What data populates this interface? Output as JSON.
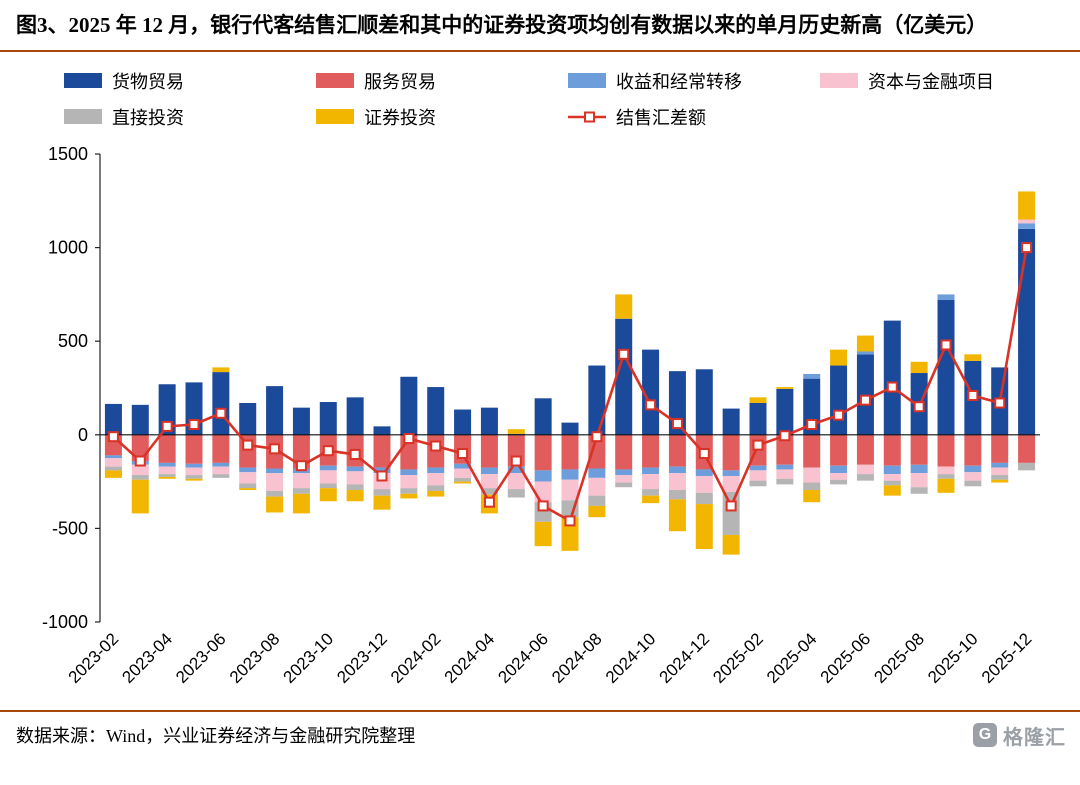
{
  "title": "图3、2025 年 12 月，银行代客结售汇顺差和其中的证券投资项均创有数据以来的单月历史新高（亿美元）",
  "footer": {
    "source": "数据来源：Wind，兴业证券经济与金融研究院整理"
  },
  "logo": {
    "text": "格隆汇",
    "icon_letter": "G"
  },
  "accent_rule_color": "#A9480C",
  "chart_data": {
    "type": "bar",
    "subtype": "stacked-bar-with-line",
    "unit": "亿美元",
    "grid": false,
    "legend_position": "top",
    "ylim": [
      -1000,
      1500
    ],
    "yticks": [
      1500,
      1000,
      500,
      0,
      -500,
      -1000
    ],
    "categories": [
      "2023-02",
      "2023-03",
      "2023-04",
      "2023-05",
      "2023-06",
      "2023-07",
      "2023-08",
      "2023-09",
      "2023-10",
      "2023-11",
      "2023-12",
      "2024-01",
      "2024-02",
      "2024-03",
      "2024-04",
      "2024-05",
      "2024-06",
      "2024-07",
      "2024-08",
      "2024-09",
      "2024-10",
      "2024-11",
      "2024-12",
      "2025-01",
      "2025-02",
      "2025-03",
      "2025-04",
      "2025-05",
      "2025-06",
      "2025-07",
      "2025-08",
      "2025-09",
      "2025-10",
      "2025-11",
      "2025-12"
    ],
    "x_label_every": 2,
    "series": [
      {
        "name": "货物贸易",
        "color": "#1B4A9B",
        "values": [
          165,
          160,
          270,
          280,
          335,
          170,
          260,
          145,
          175,
          200,
          45,
          310,
          255,
          135,
          145,
          5,
          195,
          65,
          370,
          620,
          455,
          340,
          350,
          140,
          170,
          245,
          300,
          370,
          430,
          610,
          330,
          720,
          395,
          360,
          1100
        ]
      },
      {
        "name": "服务贸易",
        "color": "#E15C5C",
        "values": [
          -110,
          -140,
          -150,
          -155,
          -150,
          -175,
          -180,
          -180,
          -165,
          -170,
          -175,
          -185,
          -175,
          -155,
          -175,
          -170,
          -190,
          -185,
          -180,
          -185,
          -175,
          -170,
          -185,
          -190,
          -165,
          -160,
          -175,
          -165,
          -160,
          -165,
          -160,
          -170,
          -165,
          -150,
          -150
        ]
      },
      {
        "name": "收益和经常转移",
        "color": "#6D9EDB",
        "values": [
          -15,
          -20,
          -20,
          -20,
          -20,
          -25,
          -25,
          -25,
          -25,
          -25,
          -30,
          -30,
          -30,
          -25,
          -35,
          -35,
          -60,
          -55,
          -50,
          -30,
          -35,
          -35,
          -35,
          -30,
          -25,
          -25,
          25,
          -40,
          15,
          -45,
          -45,
          30,
          -35,
          -25,
          30
        ]
      },
      {
        "name": "资本与金融项目",
        "color": "#F9C2D0",
        "values": [
          -45,
          -55,
          -40,
          -40,
          -40,
          -60,
          -95,
          -80,
          -70,
          -70,
          -85,
          -70,
          -65,
          -50,
          -75,
          -85,
          -110,
          -110,
          -95,
          -40,
          -80,
          -90,
          -90,
          -85,
          -55,
          -50,
          -80,
          -35,
          -50,
          -35,
          -75,
          -40,
          -45,
          -40,
          20
        ]
      },
      {
        "name": "直接投资",
        "color": "#B5B5B5",
        "values": [
          -20,
          -25,
          -15,
          -20,
          -20,
          -25,
          -30,
          -30,
          -25,
          -30,
          -35,
          -30,
          -30,
          -20,
          -35,
          -45,
          -105,
          -90,
          -55,
          -25,
          -35,
          -50,
          -60,
          -230,
          -30,
          -30,
          -40,
          -25,
          -35,
          -25,
          -35,
          -25,
          -30,
          -25,
          -40
        ]
      },
      {
        "name": "证券投资",
        "color": "#F2B600",
        "values": [
          -40,
          -180,
          -10,
          -10,
          25,
          -10,
          -85,
          -105,
          -70,
          -60,
          -75,
          -25,
          -30,
          -10,
          -100,
          25,
          -130,
          -180,
          -60,
          130,
          -40,
          -170,
          -240,
          -105,
          30,
          10,
          -65,
          85,
          85,
          -55,
          60,
          -75,
          35,
          -15,
          150
        ]
      }
    ],
    "line_series": {
      "name": "结售汇差额",
      "color": "#D93226",
      "marker": "open-square",
      "values": [
        -10,
        -140,
        45,
        55,
        115,
        -55,
        -75,
        -165,
        -85,
        -105,
        -220,
        -20,
        -60,
        -100,
        -360,
        -140,
        -380,
        -460,
        -10,
        430,
        160,
        60,
        -100,
        -380,
        -55,
        -5,
        55,
        105,
        185,
        255,
        150,
        480,
        210,
        170,
        1000
      ]
    },
    "legend_rows": [
      [
        "货物贸易",
        "服务贸易",
        "收益和经常转移",
        "资本与金融项目"
      ],
      [
        "直接投资",
        "证券投资",
        "结售汇差额"
      ]
    ]
  }
}
